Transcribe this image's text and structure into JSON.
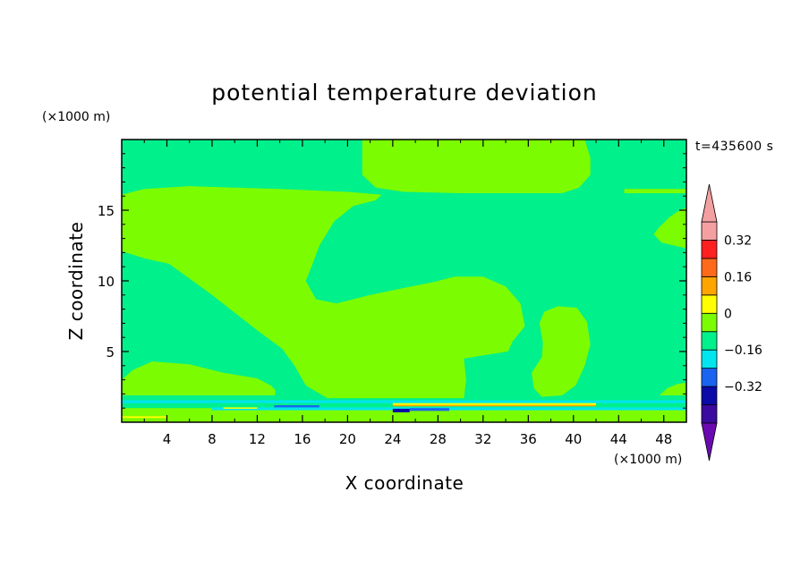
{
  "chart_data": {
    "type": "heatmap",
    "title": "potential temperature deviation",
    "xlabel": "X coordinate",
    "ylabel": "Z coordinate",
    "x_unit": "(×1000 m)",
    "y_unit": "(×1000 m)",
    "time_label": "t=435600 s",
    "xlim": [
      0,
      50
    ],
    "ylim": [
      0,
      20
    ],
    "x_ticks": [
      "4",
      "8",
      "12",
      "16",
      "20",
      "24",
      "28",
      "32",
      "36",
      "40",
      "44",
      "48"
    ],
    "y_ticks": [
      "5",
      "10",
      "15"
    ],
    "colorbar": {
      "levels": [
        -0.48,
        -0.4,
        -0.32,
        -0.24,
        -0.16,
        -0.08,
        0,
        0.08,
        0.16,
        0.24,
        0.32,
        0.4
      ],
      "colors": [
        "#3b0a9e",
        "#0b0ba8",
        "#1a64f0",
        "#00e5ee",
        "#00f08c",
        "#7cfc00",
        "#ffff00",
        "#ffa500",
        "#ff6a1a",
        "#ff2020",
        "#f4a0a0"
      ],
      "under_color": "#6a0ab0",
      "over_color": "#f4a0a0",
      "labels": [
        {
          "value": 0.32,
          "text": "0.32"
        },
        {
          "value": 0.16,
          "text": "0.16"
        },
        {
          "value": 0,
          "text": "0"
        },
        {
          "value": -0.16,
          "text": "−0.16"
        },
        {
          "value": -0.32,
          "text": "−0.32"
        }
      ]
    },
    "fill_colors": {
      "background_level": "#00f08c",
      "positive_level": "#7cfc00",
      "near_surface_cool": "#00e5ee",
      "near_surface_cold": "#1a64f0",
      "near_surface_coldest": "#0b0ba8",
      "near_surface_warm": "#ffff00",
      "near_surface_warmer": "#ffa500"
    },
    "regions": [
      {
        "level": "positive",
        "points": [
          [
            0,
            16.1
          ],
          [
            2,
            16.5
          ],
          [
            6,
            16.7
          ],
          [
            14,
            16.5
          ],
          [
            20,
            16.3
          ],
          [
            23,
            16.1
          ],
          [
            22.5,
            15.7
          ],
          [
            20.5,
            15.3
          ],
          [
            18.8,
            14.2
          ],
          [
            17.5,
            12.5
          ],
          [
            16.8,
            11.0
          ],
          [
            16.3,
            10.0
          ],
          [
            17.2,
            8.7
          ],
          [
            19,
            8.4
          ],
          [
            22,
            9.0
          ],
          [
            25,
            9.5
          ],
          [
            27.5,
            9.9
          ],
          [
            29.5,
            10.3
          ],
          [
            32,
            10.3
          ],
          [
            34,
            9.6
          ],
          [
            35.3,
            8.4
          ],
          [
            35.7,
            6.8
          ],
          [
            34.6,
            5.7
          ],
          [
            34.2,
            5.0
          ],
          [
            32.5,
            4.8
          ],
          [
            30.3,
            4.5
          ],
          [
            30.5,
            3.0
          ],
          [
            30.3,
            1.7
          ],
          [
            18.2,
            1.7
          ],
          [
            16.3,
            2.6
          ],
          [
            15.3,
            4.0
          ],
          [
            14.2,
            5.2
          ],
          [
            12,
            6.5
          ],
          [
            8,
            9.0
          ],
          [
            4.2,
            11.2
          ],
          [
            2,
            11.6
          ],
          [
            0,
            12.1
          ]
        ]
      },
      {
        "level": "positive",
        "points": [
          [
            0,
            1.9
          ],
          [
            0,
            3.0
          ],
          [
            1,
            3.7
          ],
          [
            2.7,
            4.3
          ],
          [
            6,
            4.1
          ],
          [
            9,
            3.5
          ],
          [
            12,
            3.1
          ],
          [
            13.2,
            2.6
          ],
          [
            13.6,
            2.3
          ],
          [
            13.6,
            1.9
          ]
        ]
      },
      {
        "level": "positive",
        "points": [
          [
            21.3,
            20
          ],
          [
            21.3,
            17.5
          ],
          [
            22.5,
            16.6
          ],
          [
            25,
            16.3
          ],
          [
            30,
            16.2
          ],
          [
            35,
            16.2
          ],
          [
            39,
            16.2
          ],
          [
            40.5,
            16.6
          ],
          [
            41.5,
            17.5
          ],
          [
            41.5,
            18.7
          ],
          [
            41,
            20
          ]
        ]
      },
      {
        "level": "positive",
        "points": [
          [
            37.2,
            1.8
          ],
          [
            36.5,
            2.4
          ],
          [
            36.3,
            3.5
          ],
          [
            37.2,
            4.6
          ],
          [
            37.3,
            5.6
          ],
          [
            37.0,
            7.0
          ],
          [
            37.4,
            7.8
          ],
          [
            38.6,
            8.2
          ],
          [
            40.3,
            8.1
          ],
          [
            41.2,
            7.1
          ],
          [
            41.5,
            5.5
          ],
          [
            41.0,
            4.0
          ],
          [
            40.2,
            2.6
          ],
          [
            39.0,
            1.9
          ]
        ]
      },
      {
        "level": "positive",
        "points": [
          [
            50,
            15.2
          ],
          [
            49.2,
            14.9
          ],
          [
            48.5,
            14.5
          ],
          [
            47.6,
            13.8
          ],
          [
            47.1,
            13.3
          ],
          [
            47.8,
            12.7
          ],
          [
            50,
            12.3
          ]
        ]
      },
      {
        "level": "positive",
        "points": [
          [
            50,
            2.8
          ],
          [
            49.2,
            2.7
          ],
          [
            48.3,
            2.4
          ],
          [
            47.6,
            1.9
          ],
          [
            50,
            1.9
          ]
        ]
      },
      {
        "level": "positive",
        "points": [
          [
            0,
            1.0
          ],
          [
            50,
            1.0
          ],
          [
            50,
            0
          ],
          [
            0,
            0
          ]
        ]
      },
      {
        "level": "positive",
        "points": [
          [
            25.7,
            5.4
          ],
          [
            25.9,
            5.2
          ],
          [
            26.0,
            4.7
          ],
          [
            25.8,
            4.4
          ],
          [
            25.5,
            4.7
          ],
          [
            25.5,
            5.1
          ]
        ]
      },
      {
        "level": "positive",
        "points": [
          [
            44.5,
            16.2
          ],
          [
            50,
            16.2
          ],
          [
            50,
            16.5
          ],
          [
            44.5,
            16.5
          ]
        ]
      },
      {
        "level": "positive",
        "points": [
          [
            0,
            15.9
          ],
          [
            1,
            15.9
          ],
          [
            1,
            16.1
          ],
          [
            0,
            16.1
          ]
        ]
      }
    ],
    "bands": [
      {
        "level": "near_surface_cool",
        "x": [
          0,
          50
        ],
        "z": [
          1.35,
          1.55
        ]
      },
      {
        "level": "near_surface_cool",
        "x": [
          8,
          50
        ],
        "z": [
          0.85,
          1.05
        ]
      },
      {
        "level": "near_surface_warm",
        "x": [
          24,
          42
        ],
        "z": [
          1.2,
          1.35
        ]
      },
      {
        "level": "near_surface_warmer",
        "x": [
          24,
          42
        ],
        "z": [
          1.15,
          1.22
        ]
      },
      {
        "level": "near_surface_cold",
        "x": [
          13.5,
          17.5
        ],
        "z": [
          1.05,
          1.2
        ]
      },
      {
        "level": "near_surface_coldest",
        "x": [
          24,
          25.5
        ],
        "z": [
          0.7,
          0.95
        ]
      },
      {
        "level": "near_surface_cold",
        "x": [
          25.5,
          29
        ],
        "z": [
          0.8,
          1.0
        ]
      },
      {
        "level": "near_surface_warm",
        "x": [
          0,
          4
        ],
        "z": [
          0.3,
          0.42
        ]
      },
      {
        "level": "near_surface_warm",
        "x": [
          9,
          12
        ],
        "z": [
          0.95,
          1.05
        ]
      }
    ]
  }
}
